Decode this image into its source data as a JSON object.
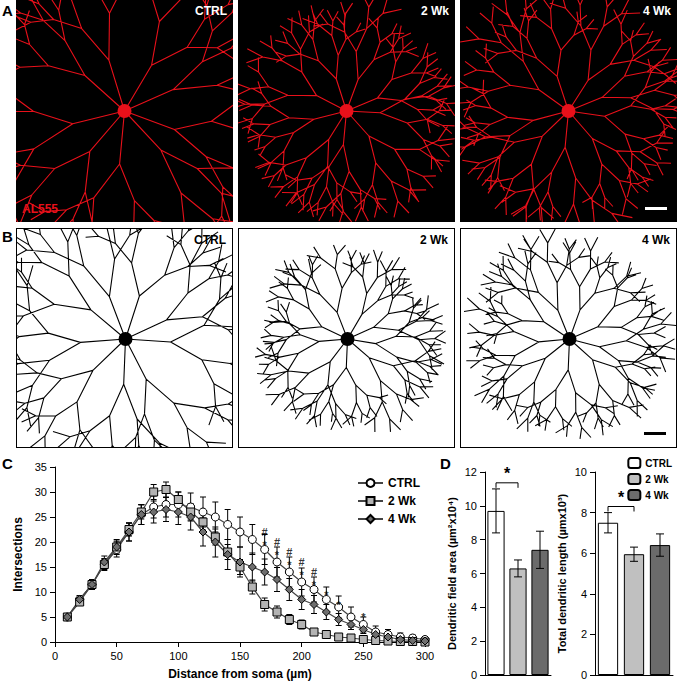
{
  "panels": [
    "A",
    "B",
    "C",
    "D"
  ],
  "images": {
    "A": {
      "labels": [
        "CTRL",
        "2 Wk",
        "4 Wk"
      ],
      "stain": "AL555"
    },
    "B": {
      "labels": [
        "CTRL",
        "2 Wk",
        "4 Wk"
      ]
    }
  },
  "chart_data": [
    {
      "type": "line",
      "x_label": "Distance from soma (µm)",
      "y_label": "Intersections",
      "x": [
        10,
        20,
        30,
        40,
        50,
        60,
        70,
        80,
        90,
        100,
        110,
        120,
        130,
        140,
        150,
        160,
        170,
        180,
        190,
        200,
        210,
        220,
        230,
        240,
        250,
        260,
        270,
        280,
        290,
        300
      ],
      "series": [
        {
          "name": "CTRL",
          "color": "#ffffff",
          "marker": "circle",
          "values": [
            5,
            8.5,
            11.5,
            15.5,
            18.5,
            22,
            25.5,
            27,
            27.5,
            27.5,
            27,
            26,
            25,
            23.5,
            22,
            20.5,
            18.5,
            16,
            14,
            12,
            10.5,
            8.5,
            7,
            5,
            3.5,
            2,
            1.5,
            1,
            0.8,
            0.5
          ],
          "errors": [
            0.5,
            0.8,
            1,
            1.2,
            1.5,
            1.8,
            2,
            2.2,
            2.5,
            2.5,
            2.8,
            3,
            3,
            3,
            3,
            3,
            3,
            3,
            3,
            2.8,
            2.5,
            2.5,
            2.2,
            2,
            1.5,
            1.2,
            1,
            0.8,
            0.6,
            0.5
          ]
        },
        {
          "name": "2 Wk",
          "color": "#b3b3b3",
          "marker": "square",
          "values": [
            5,
            8,
            11.5,
            15.5,
            19,
            22.5,
            26,
            30,
            30.5,
            28.5,
            26,
            24,
            21,
            18,
            15,
            11,
            7.5,
            6,
            4.5,
            3.5,
            2,
            1.5,
            1,
            0.8,
            0.5,
            0.3,
            0.2,
            0.1,
            0.1,
            0
          ],
          "errors": [
            0.4,
            0.6,
            0.8,
            1,
            1.2,
            1.3,
            1.4,
            1.5,
            1.5,
            1.5,
            1.6,
            1.6,
            1.6,
            1.5,
            1.5,
            1.4,
            1.3,
            1.2,
            1,
            0.9,
            0.7,
            0.6,
            0.5,
            0.4,
            0.3,
            0.3,
            0.2,
            0.1,
            0.1,
            0.1
          ]
        },
        {
          "name": "4 Wk",
          "color": "#6e6e6e",
          "marker": "diamond",
          "values": [
            5,
            8.5,
            11.5,
            16,
            19,
            22,
            25.5,
            26,
            26.5,
            26,
            25,
            22,
            20,
            17.5,
            16,
            15,
            14,
            12.5,
            10.5,
            8.5,
            7.5,
            6,
            4.5,
            3.5,
            2.5,
            1.5,
            1,
            0.5,
            0.3,
            0.2
          ],
          "errors": [
            0.4,
            0.7,
            1,
            1.2,
            1.5,
            1.8,
            2,
            2.2,
            2.4,
            2.5,
            2.6,
            2.8,
            3,
            3,
            3,
            2.8,
            2.6,
            2.4,
            2.2,
            2,
            1.8,
            1.5,
            1.2,
            1,
            0.8,
            0.6,
            0.4,
            0.3,
            0.2,
            0.2
          ]
        }
      ],
      "xlim": [
        0,
        300
      ],
      "xticks": [
        0,
        50,
        100,
        150,
        200,
        250,
        300
      ],
      "ylim": [
        0,
        35
      ],
      "yticks": [
        0,
        5,
        10,
        15,
        20,
        25,
        30,
        35
      ],
      "grid": false,
      "legend": "top-right",
      "annotations": [
        {
          "x": 170,
          "y": 22,
          "text": "#"
        },
        {
          "x": 180,
          "y": 20,
          "text": "#"
        },
        {
          "x": 190,
          "y": 18,
          "text": "#"
        },
        {
          "x": 200,
          "y": 16,
          "text": "#"
        },
        {
          "x": 210,
          "y": 14,
          "text": "#"
        },
        {
          "x": 170,
          "y": 19.5,
          "text": "*"
        },
        {
          "x": 180,
          "y": 17.5,
          "text": "*"
        },
        {
          "x": 190,
          "y": 15.5,
          "text": "*"
        },
        {
          "x": 200,
          "y": 13.5,
          "text": "*"
        },
        {
          "x": 210,
          "y": 11.5,
          "text": "*"
        },
        {
          "x": 220,
          "y": 9.5,
          "text": "*"
        },
        {
          "x": 230,
          "y": 7.5,
          "text": "*"
        },
        {
          "x": 250,
          "y": 5,
          "text": "*"
        }
      ]
    },
    {
      "type": "bar",
      "y_label": "Dendritic field area (µm²x10⁴)",
      "categories": [
        "CTRL",
        "2 Wk",
        "4 Wk"
      ],
      "values": [
        9.7,
        6.3,
        7.4
      ],
      "errors": [
        1.3,
        0.5,
        1.1
      ],
      "colors": [
        "#ffffff",
        "#c0c0c0",
        "#6b6b6b"
      ],
      "ylim": [
        0,
        12
      ],
      "yticks": [
        0,
        2,
        4,
        6,
        8,
        10,
        12
      ],
      "grid": false,
      "tick_labels": "y",
      "significance": [
        {
          "from": "CTRL",
          "to": "2 Wk",
          "label": "*"
        }
      ]
    },
    {
      "type": "bar",
      "y_label": "Total dendritic length (µmx10³)",
      "categories": [
        "CTRL",
        "2 Wk",
        "4 Wk"
      ],
      "values": [
        7.5,
        5.95,
        6.4
      ],
      "errors": [
        0.5,
        0.35,
        0.55
      ],
      "colors": [
        "#ffffff",
        "#c0c0c0",
        "#6b6b6b"
      ],
      "ylim": [
        0,
        10
      ],
      "yticks": [
        0,
        2,
        4,
        6,
        8,
        10
      ],
      "grid": false,
      "tick_labels": "y",
      "legend": "top-right",
      "significance": [
        {
          "from": "CTRL",
          "to": "2 Wk",
          "label": "*"
        }
      ]
    }
  ]
}
